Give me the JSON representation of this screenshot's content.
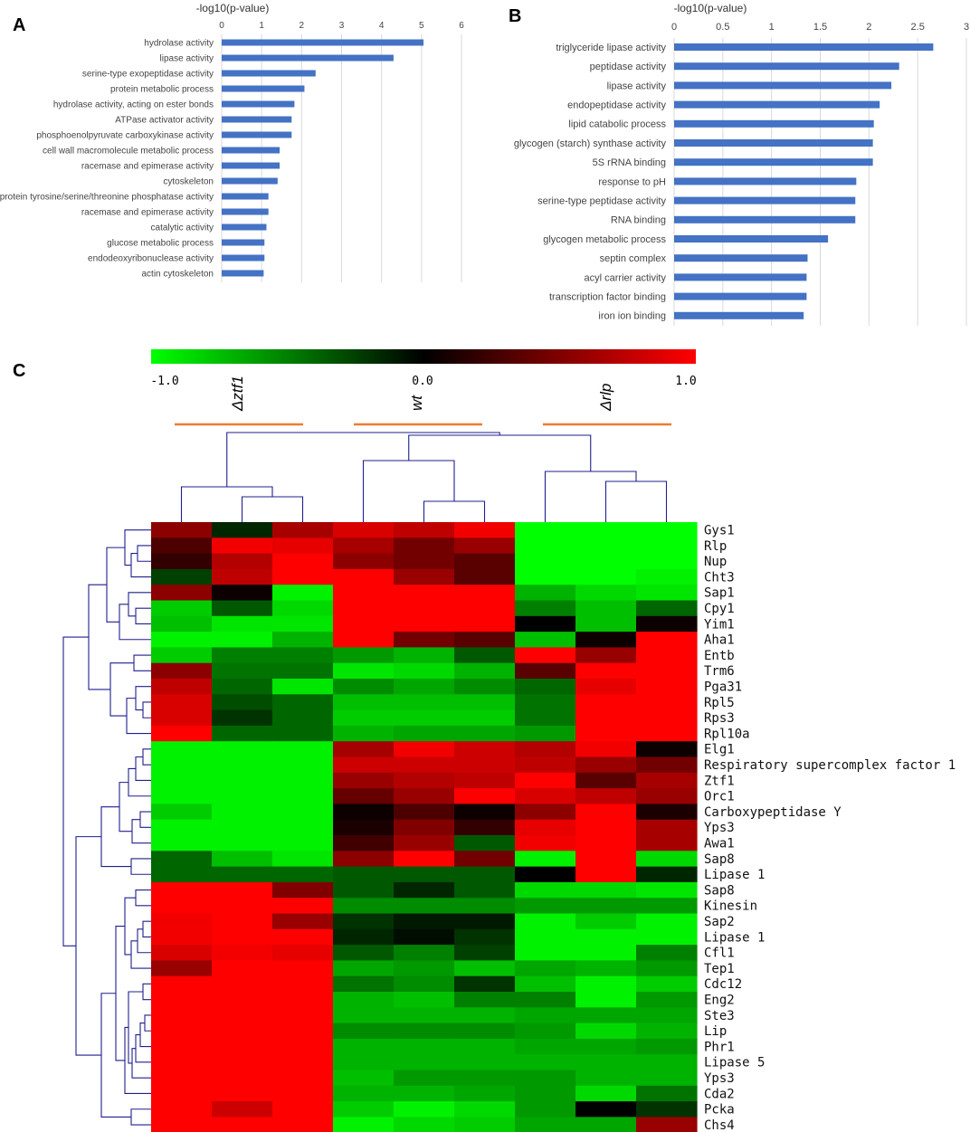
{
  "chart_data": [
    {
      "panel_label": "A",
      "type": "bar",
      "orientation": "horizontal",
      "title": "-log10(p-value)",
      "xlim": [
        0,
        6
      ],
      "ticks": [
        "0",
        "1",
        "2",
        "3",
        "4",
        "5",
        "6"
      ],
      "bar_color": "#4472C4",
      "categories": [
        "hydrolase activity",
        "lipase activity",
        "serine-type exopeptidase activity",
        "protein metabolic process",
        "hydrolase activity, acting on ester bonds",
        "ATPase activator activity",
        "phosphoenolpyruvate carboxykinase activity",
        "cell wall macromolecule metabolic process",
        "racemase and epimerase activity",
        "cytoskeleton",
        "protein tyrosine/serine/threonine phosphatase activity",
        "racemase and epimerase activity",
        "catalytic activity",
        "glucose metabolic process",
        "endodeoxyribonuclease activity",
        "actin cytoskeleton"
      ],
      "values": [
        5.05,
        4.3,
        2.35,
        2.07,
        1.82,
        1.75,
        1.75,
        1.45,
        1.45,
        1.4,
        1.17,
        1.17,
        1.12,
        1.07,
        1.07,
        1.05
      ]
    },
    {
      "panel_label": "B",
      "type": "bar",
      "orientation": "horizontal",
      "title": "-log10(p-value)",
      "xlim": [
        0,
        3
      ],
      "ticks": [
        "0",
        "0.5",
        "1",
        "1.5",
        "2",
        "2.5",
        "3"
      ],
      "bar_color": "#4472C4",
      "categories": [
        "triglyceride lipase activity",
        "peptidase activity",
        "lipase activity",
        "endopeptidase activity",
        "lipid catabolic process",
        "glycogen (starch) synthase activity",
        "5S rRNA binding",
        "response to pH",
        "serine-type peptidase activity",
        "RNA binding",
        "glycogen metabolic process",
        "septin complex",
        "acyl carrier activity",
        "transcription factor binding",
        "iron ion binding"
      ],
      "values": [
        2.66,
        2.31,
        2.23,
        2.11,
        2.05,
        2.04,
        2.04,
        1.87,
        1.86,
        1.86,
        1.58,
        1.37,
        1.36,
        1.36,
        1.33
      ]
    },
    {
      "panel_label": "C",
      "type": "heatmap",
      "colorscale": {
        "min_label": "-1.0",
        "mid_label": "0.0",
        "max_label": "1.0",
        "low_color": "#00FF00",
        "mid_color": "#000000",
        "high_color": "#FF0000"
      },
      "groups": [
        "Δztf1",
        "wt",
        "Δrlp"
      ],
      "group_color": "#ED7D31",
      "dendrogram_color": "#1F1F8F",
      "rows": [
        "Gys1",
        "Rlp",
        "Nup",
        "Cht3",
        "Sap1",
        "Cpy1",
        "Yim1",
        "Aha1",
        "Entb",
        "Trm6",
        "Pga31",
        "Rpl5",
        "Rps3",
        "Rpl10a",
        "Elg1",
        "Respiratory supercomplex factor 1",
        "Ztf1",
        "Orc1",
        "Carboxypeptidase Y",
        "Yps3",
        "Awa1",
        "Sap8",
        "Lipase 1",
        "Sap8",
        "Kinesin",
        "Sap2",
        "Lipase 1",
        "Cfl1",
        "Tep1",
        "Cdc12",
        "Eng2",
        "Ste3",
        "Lip",
        "Phr1",
        "Lipase 5",
        "Yps3",
        "Cda2",
        "Pcka",
        "Chs4"
      ],
      "values": [
        [
          0.55,
          -0.15,
          0.65,
          0.85,
          0.75,
          0.95,
          -1.0,
          -1.0,
          -1.0
        ],
        [
          0.3,
          0.95,
          0.9,
          0.65,
          0.45,
          0.6,
          -1.0,
          -1.0,
          -1.0
        ],
        [
          0.2,
          0.7,
          1.0,
          0.55,
          0.45,
          0.35,
          -1.0,
          -1.0,
          -1.0
        ],
        [
          -0.25,
          0.75,
          1.0,
          1.0,
          0.6,
          0.35,
          -1.0,
          -1.0,
          -0.95
        ],
        [
          0.55,
          0.05,
          -0.95,
          1.0,
          1.0,
          1.0,
          -0.7,
          -0.85,
          -0.9
        ],
        [
          -0.8,
          -0.35,
          -0.85,
          1.0,
          1.0,
          1.0,
          -0.5,
          -0.75,
          -0.4
        ],
        [
          -0.75,
          -0.9,
          -0.9,
          1.0,
          1.0,
          1.0,
          0.0,
          -0.75,
          0.05
        ],
        [
          -0.95,
          -0.95,
          -0.7,
          1.0,
          0.45,
          0.35,
          -0.75,
          0.05,
          1.0
        ],
        [
          -0.8,
          -0.5,
          -0.5,
          -0.6,
          -0.7,
          -0.35,
          1.0,
          0.6,
          1.0
        ],
        [
          0.55,
          -0.45,
          -0.45,
          -0.9,
          -0.85,
          -0.7,
          0.35,
          1.0,
          1.0
        ],
        [
          0.75,
          -0.4,
          -0.9,
          -0.55,
          -0.65,
          -0.55,
          -0.4,
          0.9,
          1.0
        ],
        [
          0.85,
          -0.3,
          -0.4,
          -0.75,
          -0.75,
          -0.75,
          -0.45,
          1.0,
          1.0
        ],
        [
          0.85,
          -0.2,
          -0.4,
          -0.8,
          -0.8,
          -0.8,
          -0.45,
          1.0,
          1.0
        ],
        [
          1.0,
          -0.4,
          -0.4,
          -0.7,
          -0.65,
          -0.65,
          -0.6,
          1.0,
          1.0
        ],
        [
          -0.95,
          -0.95,
          -0.95,
          0.65,
          0.95,
          0.8,
          0.7,
          0.95,
          0.05
        ],
        [
          -0.95,
          -0.95,
          -0.95,
          0.8,
          0.8,
          0.8,
          0.75,
          0.6,
          0.45
        ],
        [
          -0.95,
          -0.95,
          -0.95,
          0.6,
          0.7,
          0.75,
          1.0,
          0.35,
          0.65
        ],
        [
          -0.95,
          -0.95,
          -0.95,
          0.4,
          0.6,
          1.0,
          0.85,
          0.75,
          0.6
        ],
        [
          -0.8,
          -0.95,
          -0.95,
          0.05,
          0.3,
          0.05,
          0.55,
          1.0,
          0.1
        ],
        [
          -0.95,
          -0.95,
          -0.95,
          0.1,
          0.5,
          0.2,
          0.9,
          1.0,
          0.65
        ],
        [
          -0.95,
          -0.95,
          -0.95,
          0.25,
          0.6,
          -0.35,
          0.95,
          1.0,
          0.65
        ],
        [
          -0.4,
          -0.75,
          -0.9,
          0.55,
          1.0,
          0.45,
          -0.95,
          1.0,
          -0.85
        ],
        [
          -0.4,
          -0.4,
          -0.4,
          -0.35,
          -0.35,
          -0.35,
          0.0,
          1.0,
          -0.15
        ],
        [
          1.0,
          1.0,
          0.5,
          -0.35,
          -0.15,
          -0.35,
          -0.85,
          -0.85,
          -0.9
        ],
        [
          1.0,
          1.0,
          1.0,
          -0.55,
          -0.55,
          -0.55,
          -0.6,
          -0.6,
          -0.6
        ],
        [
          0.95,
          1.0,
          0.6,
          -0.2,
          -0.1,
          -0.1,
          -0.95,
          -0.8,
          -0.95
        ],
        [
          0.95,
          1.0,
          1.0,
          -0.15,
          -0.05,
          -0.2,
          -0.95,
          -0.95,
          -0.95
        ],
        [
          0.85,
          0.95,
          0.9,
          -0.35,
          -0.5,
          -0.25,
          -0.95,
          -0.95,
          -0.5
        ],
        [
          0.6,
          1.0,
          1.0,
          -0.65,
          -0.6,
          -0.75,
          -0.65,
          -0.7,
          -0.6
        ],
        [
          1.0,
          1.0,
          1.0,
          -0.45,
          -0.55,
          -0.2,
          -0.75,
          -0.95,
          -0.8
        ],
        [
          1.0,
          1.0,
          1.0,
          -0.7,
          -0.75,
          -0.5,
          -0.5,
          -0.95,
          -0.6
        ],
        [
          1.0,
          1.0,
          1.0,
          -0.7,
          -0.7,
          -0.7,
          -0.65,
          -0.65,
          -0.65
        ],
        [
          1.0,
          1.0,
          1.0,
          -0.55,
          -0.55,
          -0.55,
          -0.6,
          -0.85,
          -0.7
        ],
        [
          1.0,
          1.0,
          1.0,
          -0.7,
          -0.7,
          -0.7,
          -0.65,
          -0.65,
          -0.6
        ],
        [
          1.0,
          1.0,
          1.0,
          -0.7,
          -0.7,
          -0.7,
          -0.7,
          -0.7,
          -0.7
        ],
        [
          1.0,
          1.0,
          1.0,
          -0.75,
          -0.6,
          -0.6,
          -0.6,
          -0.7,
          -0.7
        ],
        [
          1.0,
          1.0,
          1.0,
          -0.7,
          -0.7,
          -0.65,
          -0.6,
          -0.85,
          -0.45
        ],
        [
          1.0,
          0.8,
          1.0,
          -0.8,
          -0.95,
          -0.85,
          -0.6,
          0.0,
          -0.2
        ],
        [
          1.0,
          1.0,
          1.0,
          -0.95,
          -0.85,
          -0.8,
          -0.65,
          -0.65,
          0.6
        ]
      ]
    }
  ]
}
